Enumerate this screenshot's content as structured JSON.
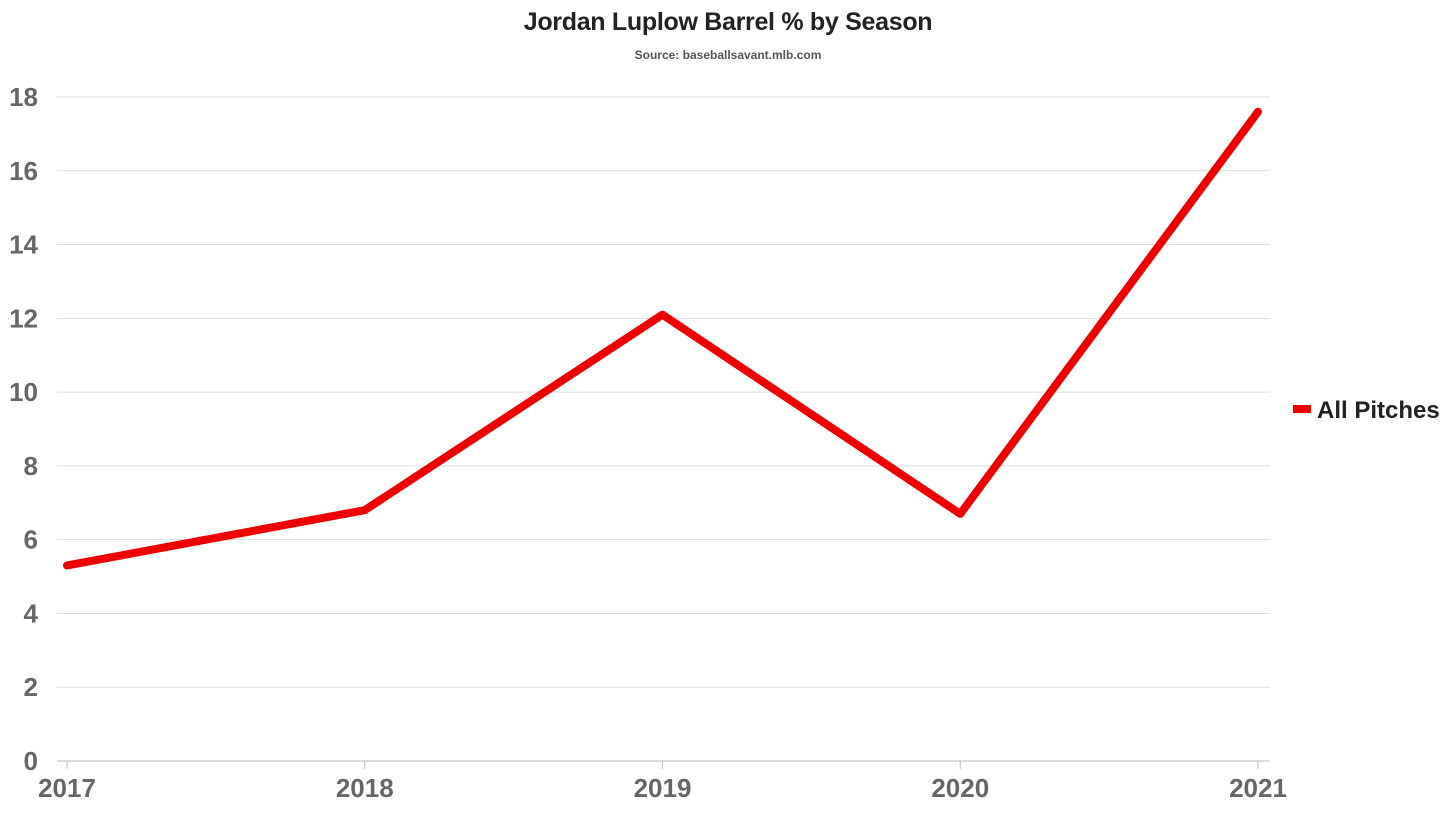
{
  "chart_data": {
    "type": "line",
    "title": "Jordan Luplow Barrel % by Season",
    "subtitle": "Source: baseballsavant.mlb.com",
    "categories": [
      "2017",
      "2018",
      "2019",
      "2020",
      "2021"
    ],
    "series": [
      {
        "name": "All Pitches",
        "values": [
          5.3,
          6.8,
          12.1,
          6.7,
          17.6
        ],
        "color": "#ee0000"
      }
    ],
    "xlabel": "",
    "ylabel": "",
    "ylim": [
      0,
      18
    ],
    "yticks": [
      "0",
      "2",
      "4",
      "6",
      "8",
      "10",
      "12",
      "14",
      "16",
      "18"
    ],
    "grid": true,
    "legend_position": "right"
  },
  "colors": {
    "grid": "#dddddd",
    "axis": "#bbbbbb",
    "series": "#ee0000"
  }
}
